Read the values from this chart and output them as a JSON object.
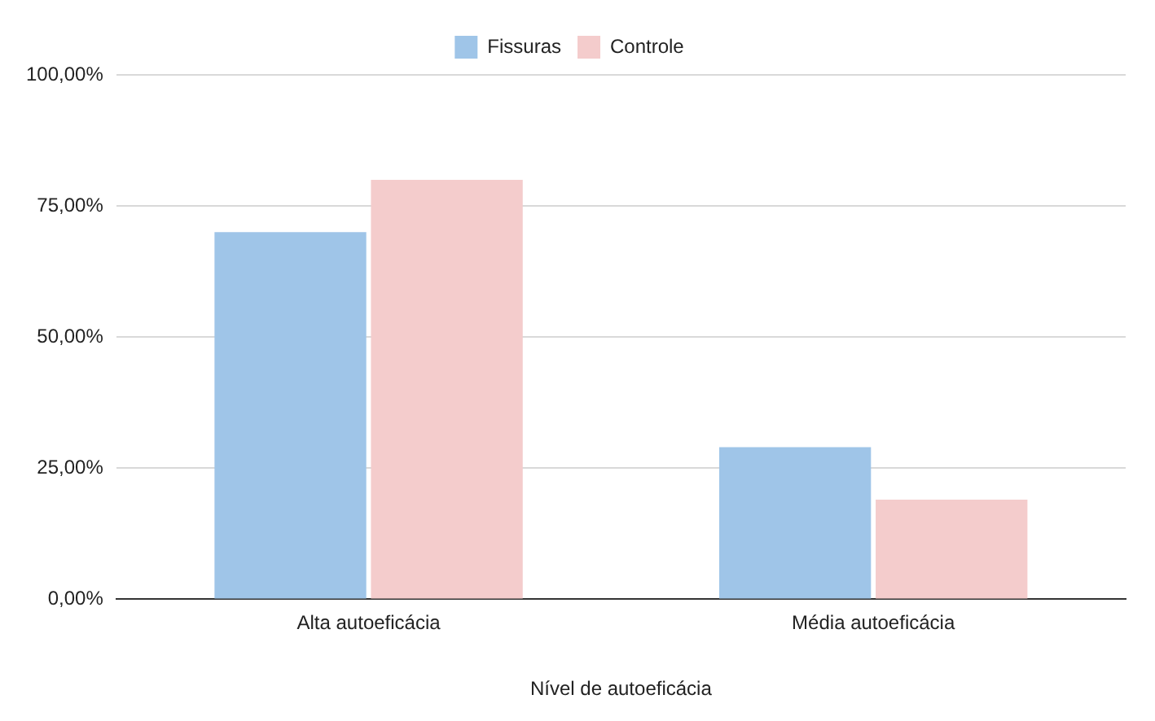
{
  "chart_data": {
    "type": "bar",
    "xlabel": "Nível de autoeficácia",
    "categories": [
      "Alta autoeficácia",
      "Média autoeficácia"
    ],
    "series": [
      {
        "name": "Fissuras",
        "color": "#9fc5e8",
        "values": [
          70,
          29
        ]
      },
      {
        "name": "Controle",
        "color": "#f4cccc",
        "values": [
          80,
          19
        ]
      }
    ],
    "ylim": [
      0,
      100
    ],
    "yticks": [
      {
        "value": 0,
        "label": "0,00%"
      },
      {
        "value": 25,
        "label": "25,00%"
      },
      {
        "value": 50,
        "label": "50,00%"
      },
      {
        "value": 75,
        "label": "75,00%"
      },
      {
        "value": 100,
        "label": "100,00%"
      }
    ],
    "grid": "y",
    "legend": "top"
  }
}
